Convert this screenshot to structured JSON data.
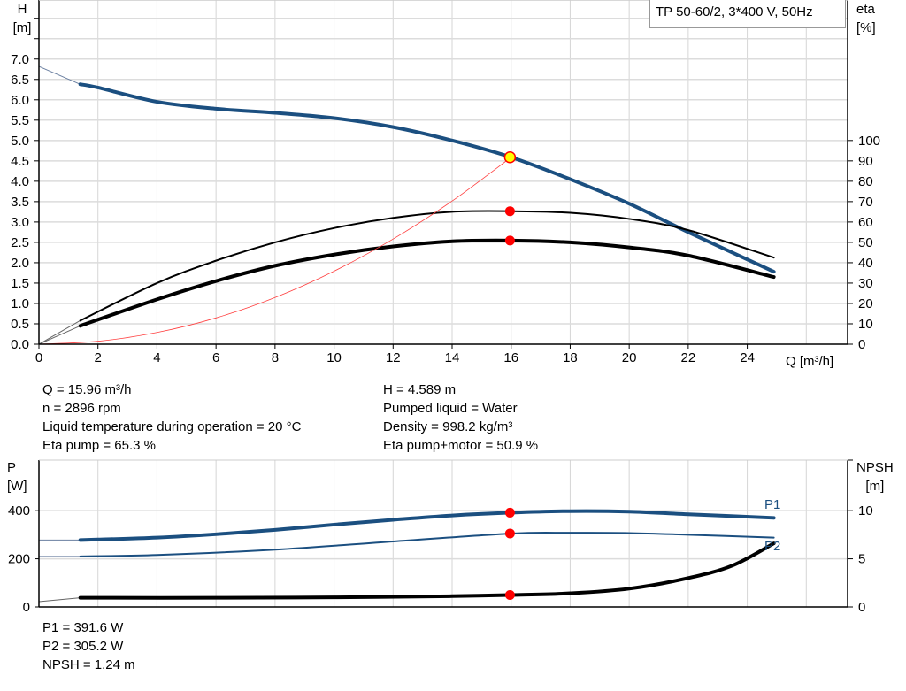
{
  "chart_data": [
    {
      "type": "line",
      "title": "TP 50-60/2, 3*400 V, 50Hz",
      "xlabel": "Q [m³/h]",
      "ylabel": [
        "H",
        "[m]"
      ],
      "y2label": [
        "eta",
        "[%]"
      ],
      "xlim": [
        0,
        27.4
      ],
      "ylim": [
        0,
        8.45
      ],
      "y2lim": [
        0,
        169
      ],
      "grid": true,
      "x_ticks": [
        "0",
        "2",
        "4",
        "6",
        "8",
        "10",
        "12",
        "14",
        "16",
        "18",
        "20",
        "22",
        "24"
      ],
      "y_ticks": [
        "0.0",
        "0.5",
        "1.0",
        "1.5",
        "2.0",
        "2.5",
        "3.0",
        "3.5",
        "4.0",
        "4.5",
        "5.0",
        "5.5",
        "6.0",
        "6.5",
        "7.0"
      ],
      "y2_ticks": [
        "0",
        "10",
        "20",
        "30",
        "40",
        "50",
        "60",
        "70",
        "80",
        "90",
        "100"
      ],
      "series": [
        {
          "key": "h",
          "axis": "y",
          "color": "#1b4f80",
          "extrapolated": [
            [
              0,
              6.82
            ],
            [
              0.7,
              6.6
            ],
            [
              1.4,
              6.38
            ]
          ],
          "points": [
            [
              1.4,
              6.38
            ],
            [
              2,
              6.3
            ],
            [
              4,
              5.95
            ],
            [
              6,
              5.78
            ],
            [
              8,
              5.68
            ],
            [
              10,
              5.55
            ],
            [
              12,
              5.33
            ],
            [
              14,
              5.0
            ],
            [
              16,
              4.589
            ],
            [
              18,
              4.05
            ],
            [
              20,
              3.45
            ],
            [
              22,
              2.75
            ],
            [
              24.9,
              1.78
            ]
          ]
        },
        {
          "key": "eta_pump",
          "axis": "y2",
          "color": "#000000",
          "extrapolated": [
            [
              0,
              0
            ],
            [
              1.4,
              11.6
            ]
          ],
          "points": [
            [
              1.4,
              11.6
            ],
            [
              4,
              30
            ],
            [
              6,
              41
            ],
            [
              8,
              50
            ],
            [
              10,
              57
            ],
            [
              12,
              62
            ],
            [
              14,
              65
            ],
            [
              16,
              65.3
            ],
            [
              18,
              64.5
            ],
            [
              20,
              61.5
            ],
            [
              22,
              56
            ],
            [
              24.9,
              42.5
            ]
          ]
        },
        {
          "key": "eta_total",
          "axis": "y2",
          "color": "#000000",
          "extrapolated": [
            [
              0,
              0
            ],
            [
              1.4,
              9
            ]
          ],
          "points": [
            [
              1.4,
              9
            ],
            [
              4,
              22
            ],
            [
              6,
              31
            ],
            [
              8,
              38.5
            ],
            [
              10,
              44
            ],
            [
              12,
              48
            ],
            [
              14,
              50.5
            ],
            [
              16,
              50.9
            ],
            [
              18,
              50
            ],
            [
              20,
              47.5
            ],
            [
              22,
              43.5
            ],
            [
              24.9,
              33
            ]
          ]
        },
        {
          "key": "system",
          "axis": "y",
          "color": "#ff4040",
          "points": [
            [
              0,
              0
            ],
            [
              2,
              0.072
            ],
            [
              4,
              0.287
            ],
            [
              6,
              0.645
            ],
            [
              8,
              1.147
            ],
            [
              10,
              1.793
            ],
            [
              12,
              2.581
            ],
            [
              14,
              3.514
            ],
            [
              16,
              4.589
            ]
          ]
        }
      ],
      "duty_point": {
        "q": 15.96,
        "h": 4.589,
        "eta_pump": 65.3,
        "eta_total": 50.9
      }
    },
    {
      "type": "line",
      "ylabel": [
        "P",
        "[W]"
      ],
      "y2label": [
        "NPSH",
        "[m]"
      ],
      "xlim": [
        0,
        27.4
      ],
      "ylim": [
        0,
        610
      ],
      "y2lim": [
        0,
        15.25
      ],
      "grid": true,
      "y_ticks": [
        "0",
        "200",
        "400"
      ],
      "y2_ticks": [
        "0",
        "5",
        "10"
      ],
      "series": [
        {
          "key": "p1",
          "name": "P1",
          "axis": "y",
          "color": "#1b4f80",
          "extrapolated": [
            [
              0,
              278
            ],
            [
              1.4,
              278
            ]
          ],
          "points": [
            [
              1.4,
              278
            ],
            [
              2,
              280
            ],
            [
              4,
              288
            ],
            [
              6,
              302
            ],
            [
              8,
              320
            ],
            [
              10,
              342
            ],
            [
              12,
              362
            ],
            [
              14,
              380
            ],
            [
              16,
              391.6
            ],
            [
              18,
              398
            ],
            [
              20,
              396
            ],
            [
              22,
              385
            ],
            [
              24.9,
              370
            ]
          ]
        },
        {
          "key": "p2",
          "name": "P2",
          "axis": "y",
          "color": "#1b4f80",
          "extrapolated": [
            [
              0,
              210
            ],
            [
              1.4,
              210
            ]
          ],
          "points": [
            [
              1.4,
              210
            ],
            [
              4,
              216
            ],
            [
              8,
              238
            ],
            [
              12,
              272
            ],
            [
              16,
              305.2
            ],
            [
              18,
              308
            ],
            [
              20,
              307
            ],
            [
              22,
              300
            ],
            [
              24.9,
              288
            ]
          ]
        },
        {
          "key": "npsh",
          "axis": "y2",
          "color": "#000000",
          "extrapolated": [
            [
              0,
              0.55
            ],
            [
              1.4,
              0.95
            ]
          ],
          "points": [
            [
              1.4,
              0.95
            ],
            [
              6,
              0.95
            ],
            [
              10,
              1.0
            ],
            [
              14,
              1.12
            ],
            [
              16,
              1.24
            ],
            [
              18,
              1.42
            ],
            [
              20,
              1.9
            ],
            [
              22,
              3.0
            ],
            [
              23.5,
              4.3
            ],
            [
              24.9,
              6.6
            ]
          ]
        }
      ],
      "duty_point": {
        "q": 15.96,
        "p1": 391.6,
        "p2": 305.2,
        "npsh": 1.24
      }
    }
  ],
  "readouts": {
    "q": "Q = 15.96 m³/h",
    "n": "n = 2896 rpm",
    "temp": "Liquid temperature during operation = 20 °C",
    "eta_pump": "Eta pump = 65.3 %",
    "h": "H = 4.589 m",
    "liquid": "Pumped liquid = Water",
    "density": "Density = 998.2 kg/m³",
    "eta_total": "Eta pump+motor = 50.9 %",
    "p1": "P1 = 391.6 W",
    "p2": "P2 = 305.2 W",
    "npsh": "NPSH = 1.24 m"
  }
}
